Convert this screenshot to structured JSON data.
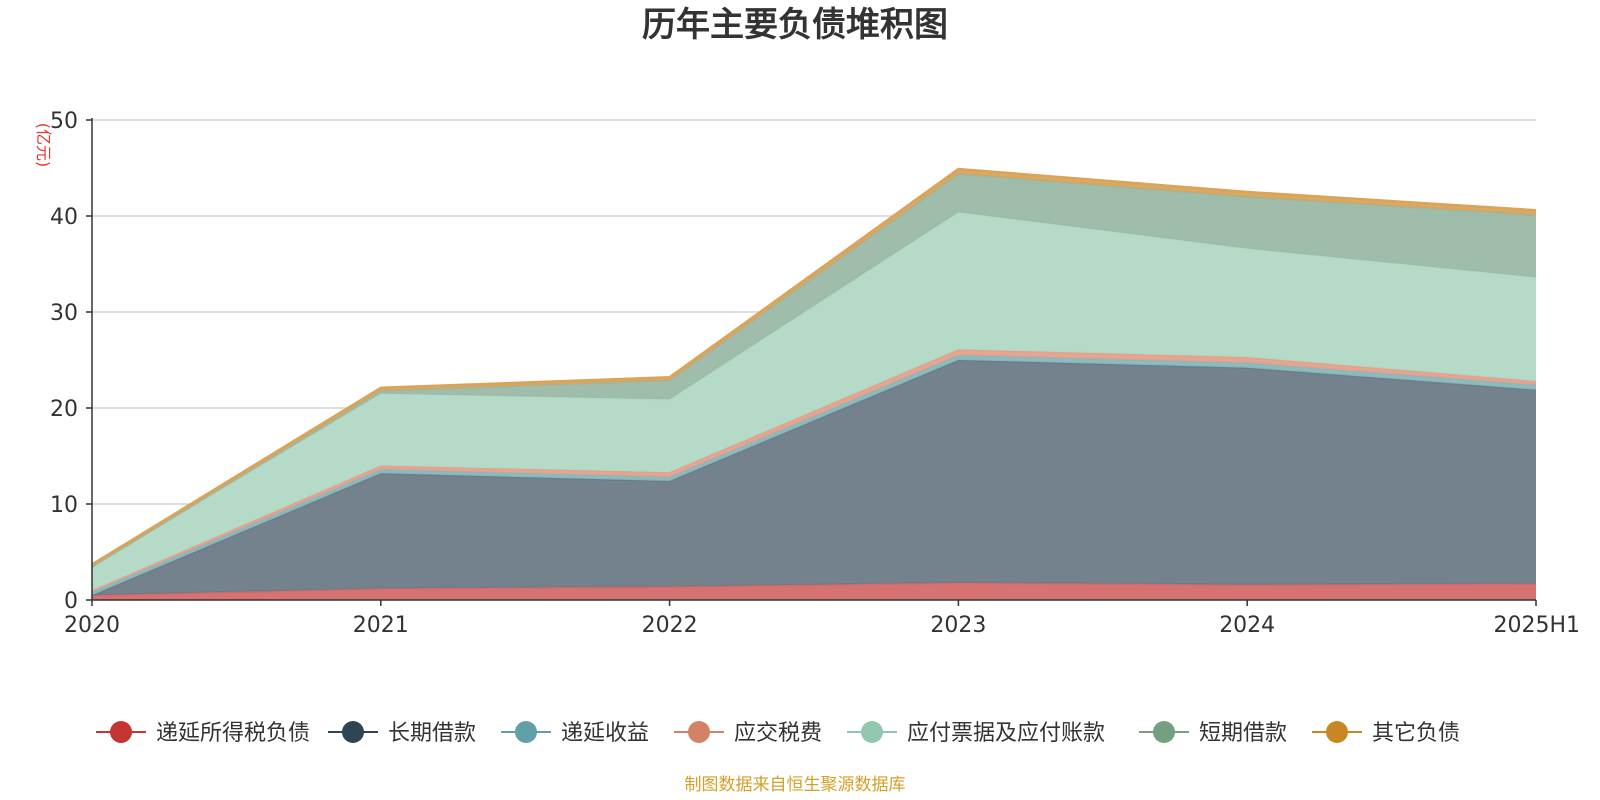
{
  "title": "历年主要负债堆积图",
  "source": "制图数据来自恒生聚源数据库",
  "chart_data": {
    "type": "area",
    "stacked": true,
    "title": "历年主要负债堆积图",
    "ylabel": "(亿元)",
    "ylim": [
      0,
      50
    ],
    "yticks": [
      0,
      10,
      20,
      30,
      40,
      50
    ],
    "grid": true,
    "legend_position": "bottom",
    "categories": [
      "2020",
      "2021",
      "2022",
      "2023",
      "2024",
      "2025H1"
    ],
    "series": [
      {
        "name": "递延所得税负债",
        "color": "#c23531",
        "fill": "#d46a6a",
        "values": [
          0.5,
          1.2,
          1.4,
          1.8,
          1.6,
          1.7
        ]
      },
      {
        "name": "长期借款",
        "color": "#2f4554",
        "fill": "#6d7b87",
        "values": [
          0.0,
          12.0,
          11.0,
          23.2,
          22.6,
          20.2
        ]
      },
      {
        "name": "递延收益",
        "color": "#61a0a8",
        "fill": "#86b8bd",
        "values": [
          0.3,
          0.4,
          0.4,
          0.5,
          0.5,
          0.5
        ]
      },
      {
        "name": "应交税费",
        "color": "#d48265",
        "fill": "#e3a08b",
        "values": [
          0.2,
          0.4,
          0.5,
          0.6,
          0.6,
          0.4
        ]
      },
      {
        "name": "应付票据及应付账款",
        "color": "#91c7ae",
        "fill": "#b1d9c5",
        "values": [
          2.5,
          7.5,
          7.6,
          14.3,
          11.3,
          10.8
        ]
      },
      {
        "name": "短期借款",
        "color": "#749f83",
        "fill": "#9bb8a6",
        "values": [
          0.0,
          0.3,
          2.0,
          4.0,
          5.4,
          6.5
        ]
      },
      {
        "name": "其它负债",
        "color": "#ca8622",
        "fill": "#d9a45a",
        "values": [
          0.2,
          0.3,
          0.3,
          0.5,
          0.5,
          0.5
        ]
      }
    ]
  }
}
